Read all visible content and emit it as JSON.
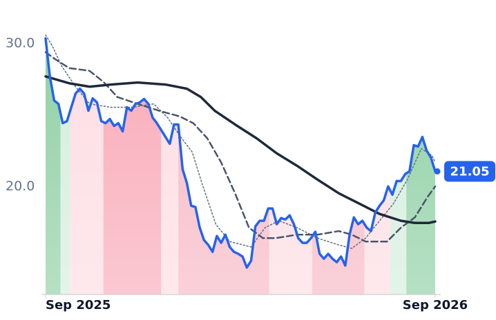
{
  "chart_data": {
    "type": "line",
    "xlim": [
      0,
      364
    ],
    "ylim": [
      12.45,
      31.1
    ],
    "xticks": [
      {
        "value": 0,
        "label": "Sep 2025"
      },
      {
        "value": 364,
        "label": "Sep 2026"
      }
    ],
    "yticks": [
      {
        "value": 20,
        "label": "20.0"
      },
      {
        "value": 30,
        "label": "30.0"
      }
    ],
    "bands": {
      "edges": [
        0,
        14,
        23,
        54,
        108,
        124,
        209,
        249,
        298,
        322,
        337,
        364
      ],
      "colors": [
        "#8fd0a4",
        "#d4eedc",
        "#fddde3",
        "#f9aab8",
        "#fddde3",
        "#f7b8c4",
        "#fddde3",
        "#f7b8c4",
        "#fddde3",
        "#d4eedc",
        "#8fd0a4"
      ]
    },
    "series": [
      {
        "color": "#2563eb",
        "style": "solid",
        "width": 3.5,
        "fill": true,
        "last_label": true,
        "x": [
          0,
          4,
          8,
          12,
          16,
          20,
          24,
          28,
          32,
          36,
          40,
          44,
          48,
          52,
          56,
          60,
          64,
          68,
          72,
          76,
          80,
          84,
          88,
          92,
          96,
          100,
          104,
          108,
          112,
          116,
          120,
          124,
          128,
          132,
          136,
          140,
          144,
          148,
          152,
          156,
          160,
          164,
          168,
          172,
          176,
          180,
          184,
          188,
          192,
          196,
          200,
          204,
          208,
          212,
          216,
          220,
          224,
          228,
          232,
          236,
          240,
          244,
          248,
          252,
          256,
          260,
          264,
          268,
          272,
          276,
          280,
          284,
          288,
          292,
          296,
          300,
          304,
          308,
          312,
          316,
          320,
          324,
          328,
          332,
          336,
          340,
          344,
          348,
          352,
          356,
          360,
          364
        ],
        "values": [
          30.34,
          27.69,
          26.01,
          25.77,
          24.42,
          24.57,
          25.53,
          26.49,
          26.83,
          26.49,
          25.29,
          26.15,
          25.87,
          24.57,
          24.42,
          24.71,
          24.23,
          24.42,
          23.85,
          25.53,
          25.29,
          25.77,
          25.87,
          26.11,
          25.77,
          24.81,
          24.42,
          23.94,
          23.46,
          22.98,
          24.33,
          24.33,
          21.2,
          20.24,
          18.65,
          18.56,
          17.12,
          16.25,
          15.91,
          15.43,
          16.54,
          16.06,
          16.63,
          15.77,
          15.43,
          15.29,
          15.1,
          14.33,
          14.81,
          17.21,
          17.6,
          17.6,
          18.46,
          18.46,
          17.36,
          17.79,
          17.69,
          17.98,
          17.36,
          16.39,
          16.06,
          16.06,
          16.39,
          16.83,
          15.29,
          14.95,
          15.29,
          14.95,
          14.71,
          15.1,
          14.47,
          16.63,
          17.84,
          17.36,
          17.6,
          17.12,
          16.88,
          18.17,
          18.65,
          19.04,
          20,
          19.42,
          20.38,
          20.38,
          20.87,
          21.06,
          22.88,
          22.79,
          23.46,
          22.5,
          22.02,
          21.05
        ]
      },
      {
        "color": "#1e293b",
        "style": "solid",
        "width": 3.5,
        "x": [
          0,
          22,
          41,
          61,
          86,
          112,
          132,
          145,
          158,
          177,
          197,
          216,
          235,
          254,
          274,
          293,
          312,
          332,
          345,
          358,
          364
        ],
        "values": [
          27.69,
          27.21,
          26.97,
          27.12,
          27.26,
          27.12,
          26.83,
          26.25,
          25.29,
          24.33,
          23.37,
          22.31,
          21.44,
          20.48,
          19.52,
          18.8,
          18.08,
          17.6,
          17.45,
          17.45,
          17.55
        ]
      },
      {
        "color": "#475569",
        "style": "dashed",
        "width": 2.5,
        "x": [
          0,
          9,
          22,
          41,
          54,
          67,
          86,
          106,
          125,
          138,
          151,
          164,
          177,
          190,
          203,
          215,
          235,
          254,
          274,
          286,
          299,
          319,
          332,
          345,
          357,
          364
        ],
        "values": [
          29.38,
          28.89,
          28.27,
          28.08,
          27.31,
          26.25,
          25.77,
          25.29,
          24.9,
          24.42,
          23.37,
          21.68,
          19.52,
          17.12,
          16.39,
          16.39,
          16.63,
          16.63,
          16.88,
          16.63,
          16.15,
          16.15,
          17.12,
          17.84,
          19.28,
          20
        ]
      },
      {
        "color": "#64748b",
        "style": "dotted",
        "width": 1.6,
        "x": [
          0,
          6,
          15,
          28,
          41,
          61,
          81,
          101,
          114,
          127,
          137,
          146,
          159,
          172,
          192,
          205,
          218,
          235,
          254,
          274,
          286,
          299,
          312,
          325,
          338,
          351,
          361,
          364
        ],
        "values": [
          30.58,
          29.86,
          28.41,
          26.97,
          25.77,
          25.53,
          25.53,
          25.77,
          24.81,
          23.37,
          22.4,
          20.24,
          17.36,
          16.15,
          15.77,
          17.12,
          17.6,
          17.12,
          16.39,
          15.91,
          15.67,
          16.39,
          17.6,
          18.8,
          20.48,
          22.64,
          22.16,
          21.68
        ]
      }
    ]
  }
}
